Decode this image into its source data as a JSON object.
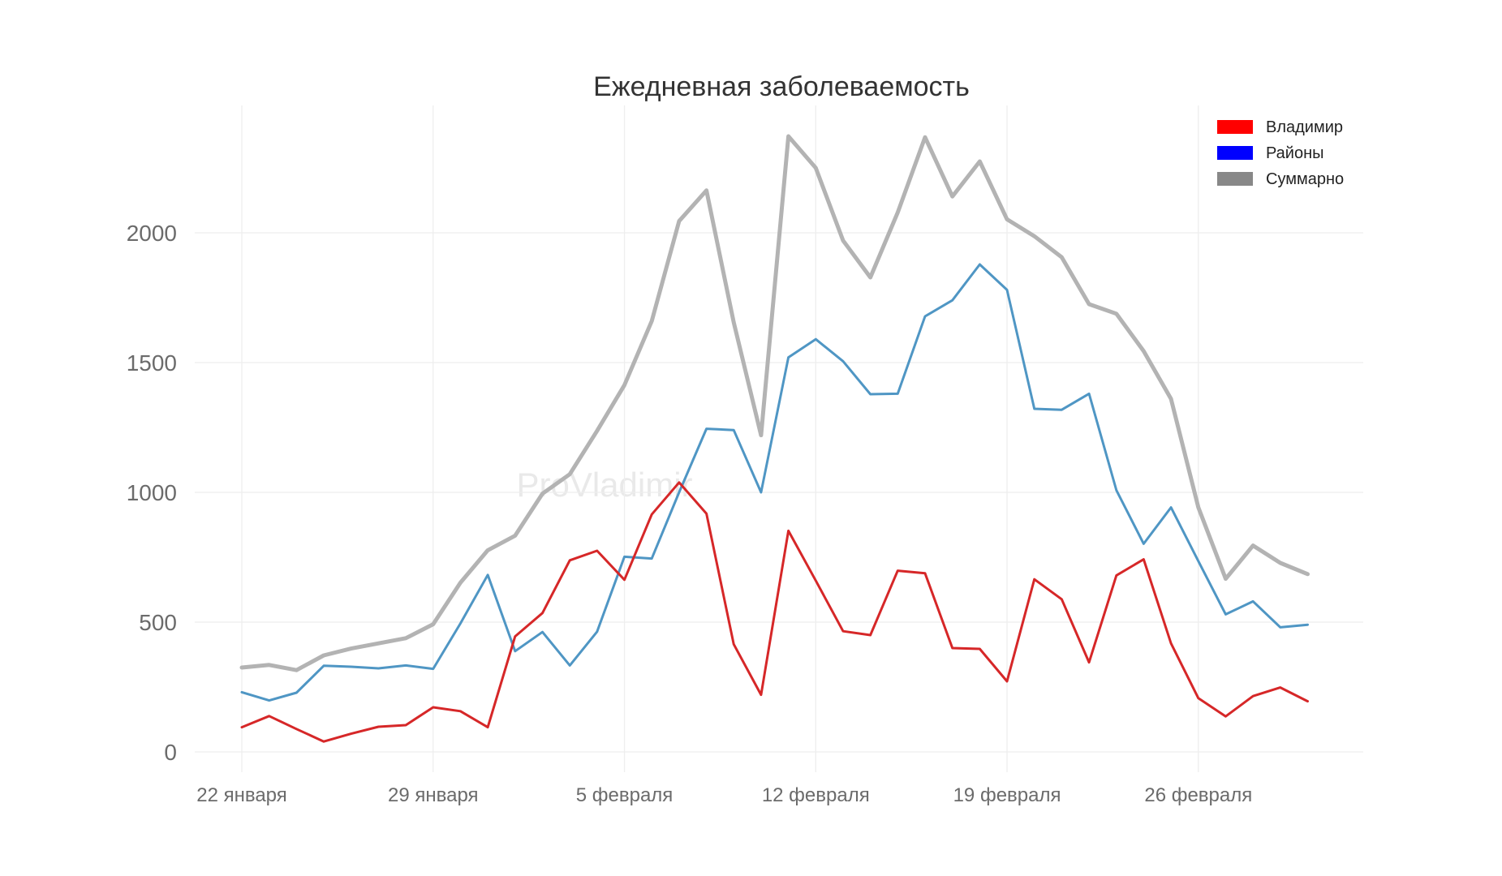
{
  "chart_data": {
    "type": "line",
    "title": "Ежедневная заболеваемость",
    "watermark": "ProVladimir",
    "xlabel": "",
    "ylabel": "",
    "ylim": [
      -40,
      2500
    ],
    "yticks": [
      0,
      500,
      1000,
      1500,
      2000
    ],
    "x_start": "22 января",
    "x_count": 40,
    "x_tick_labels": [
      {
        "index": 0,
        "label": "22 января"
      },
      {
        "index": 7,
        "label": "29 января"
      },
      {
        "index": 14,
        "label": "5 февраля"
      },
      {
        "index": 21,
        "label": "12 февраля"
      },
      {
        "index": 28,
        "label": "19 февраля"
      },
      {
        "index": 35,
        "label": "26 февраля"
      }
    ],
    "grid": true,
    "legend_position": "top-right",
    "series": [
      {
        "name": "Владимир",
        "color": "#d62728",
        "legend_color": "#ff0000",
        "line_width": 3,
        "values": [
          95,
          138,
          88,
          40,
          70,
          97,
          103,
          172,
          157,
          95,
          445,
          535,
          738,
          775,
          663,
          915,
          1038,
          918,
          415,
          220,
          852,
          660,
          465,
          450,
          698,
          688,
          400,
          397,
          272,
          665,
          588,
          345,
          680,
          742,
          418,
          207,
          137,
          215,
          248,
          195
        ]
      },
      {
        "name": "Районы",
        "color": "#4f96c4",
        "legend_color": "#0000ff",
        "line_width": 3,
        "values": [
          230,
          198,
          228,
          332,
          328,
          322,
          333,
          320,
          495,
          682,
          388,
          462,
          333,
          463,
          752,
          745,
          1000,
          1245,
          1240,
          1000,
          1520,
          1590,
          1505,
          1378,
          1380,
          1678,
          1740,
          1878,
          1780,
          1322,
          1318,
          1380,
          1008,
          802,
          942,
          735,
          530,
          580,
          480,
          490
        ]
      },
      {
        "name": "Суммарно",
        "color": "#b3b3b3",
        "legend_color": "#888888",
        "line_width": 5,
        "values": [
          325,
          335,
          315,
          372,
          398,
          418,
          438,
          492,
          652,
          777,
          833,
          995,
          1070,
          1237,
          1413,
          1660,
          2045,
          2163,
          1655,
          1220,
          2372,
          2250,
          1970,
          1828,
          2078,
          2368,
          2140,
          2275,
          2052,
          1987,
          1906,
          1725,
          1688,
          1544,
          1360,
          942,
          667,
          795,
          728,
          685
        ]
      }
    ]
  }
}
